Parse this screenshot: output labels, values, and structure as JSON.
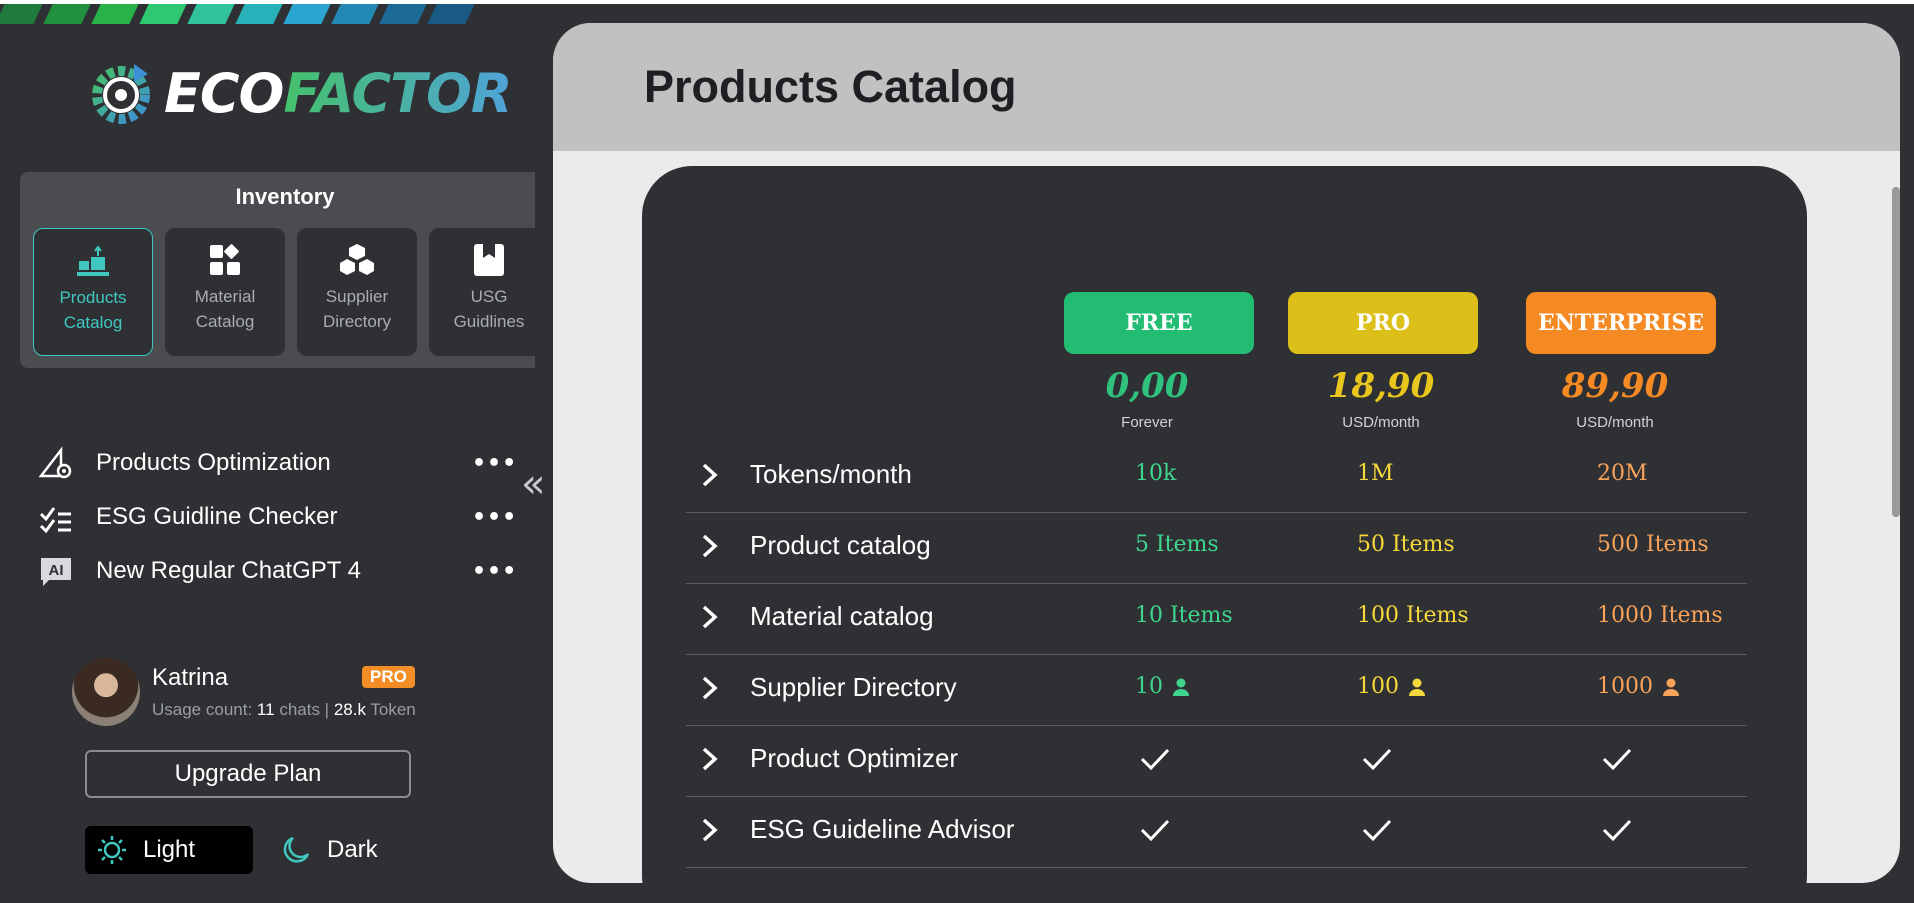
{
  "brand": {
    "eco": "ECO",
    "factor": "FACTOR"
  },
  "inventory": {
    "title": "Inventory",
    "items": [
      {
        "label_line1": "Products",
        "label_line2": "Catalog",
        "icon": "products-catalog-icon",
        "active": true
      },
      {
        "label_line1": "Material",
        "label_line2": "Catalog",
        "icon": "material-catalog-icon",
        "active": false
      },
      {
        "label_line1": "Supplier",
        "label_line2": "Directory",
        "icon": "supplier-directory-icon",
        "active": false
      },
      {
        "label_line1": "USG",
        "label_line2": "Guidlines",
        "icon": "usg-guidelines-icon",
        "active": false
      }
    ]
  },
  "menu": {
    "items": [
      {
        "label": "Products Optimization",
        "icon": "products-optimization-icon",
        "more": "•••"
      },
      {
        "label": "ESG Guidline Checker",
        "icon": "checklist-icon",
        "more": "•••"
      },
      {
        "label": "New Regular ChatGPT 4",
        "icon": "ai-icon",
        "more": "•••"
      }
    ],
    "collapse": "«"
  },
  "user": {
    "name": "Katrina",
    "badge": "PRO",
    "usage_prefix": "Usage count:",
    "chats_count": "11",
    "chats_label": "chats |",
    "token_count": "28.k",
    "token_label": "Token"
  },
  "upgrade_label": "Upgrade Plan",
  "theme": {
    "light": "Light",
    "dark": "Dark",
    "selected": "Light"
  },
  "page": {
    "title": "Products Catalog"
  },
  "plans": [
    {
      "name": "FREE",
      "price": "0,00",
      "period": "Forever",
      "color": "#22bd73"
    },
    {
      "name": "PRO",
      "price": "18,90",
      "period": "USD/month",
      "color": "#dcbf19"
    },
    {
      "name": "ENTERPRISE",
      "price": "89,90",
      "period": "USD/month",
      "color": "#f58a24"
    }
  ],
  "features": [
    {
      "label": "Tokens/month",
      "values": [
        "10k",
        "1M",
        "20M"
      ],
      "type": "text"
    },
    {
      "label": "Product catalog",
      "values": [
        "5 Items",
        "50 Items",
        "500 Items"
      ],
      "type": "text"
    },
    {
      "label": "Material catalog",
      "values": [
        "10 Items",
        "100 Items",
        "1000 Items"
      ],
      "type": "text"
    },
    {
      "label": "Supplier Directory",
      "values": [
        "10",
        "100",
        "1000"
      ],
      "type": "user"
    },
    {
      "label": "Product Optimizer",
      "values": [
        "✓",
        "✓",
        "✓"
      ],
      "type": "check"
    },
    {
      "label": "ESG Guideline Advisor",
      "values": [
        "✓",
        "✓",
        "✓"
      ],
      "type": "check"
    }
  ],
  "colors": {
    "free": "#22bd73",
    "pro": "#dcbf19",
    "enterprise": "#f58a24",
    "free_text": "#3fd58e",
    "pro_text": "#f5d83a",
    "enterprise_text": "#f9a25a",
    "accent": "#3fc7c0"
  }
}
